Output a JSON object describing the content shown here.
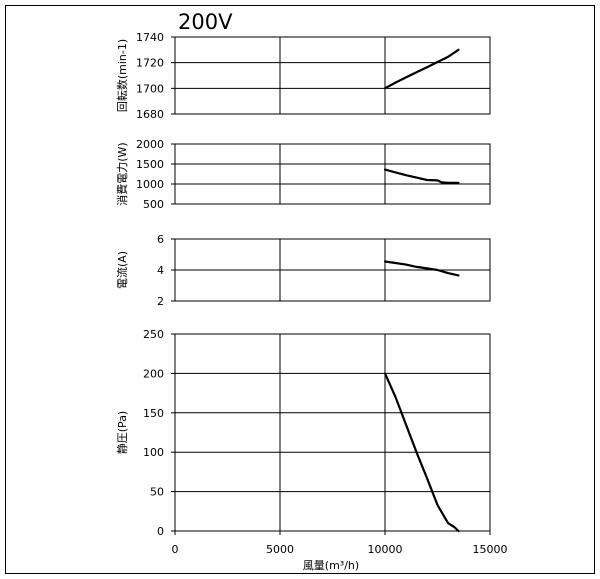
{
  "chart_data": {
    "title": "200V",
    "xlabel": "風量(m³/h)",
    "xlim": [
      0,
      15000
    ],
    "x_ticks": [
      0,
      5000,
      10000,
      15000
    ],
    "panels": [
      {
        "type": "line",
        "ylabel": "回転数(min-1)",
        "ylim": [
          1680,
          1740
        ],
        "y_ticks": [
          1680,
          1700,
          1720,
          1740
        ],
        "grid": true,
        "series": [
          {
            "x": [
              10000,
              10500,
              11000,
              11500,
              12000,
              12500,
              13000,
              13500
            ],
            "values": [
              1700,
              1704.5,
              1708.5,
              1712.5,
              1716.5,
              1720.5,
              1724.5,
              1730
            ]
          }
        ]
      },
      {
        "type": "line",
        "ylabel": "消費電力(W)",
        "ylim": [
          500,
          2000
        ],
        "y_ticks": [
          500,
          1000,
          1500,
          2000
        ],
        "grid": true,
        "series": [
          {
            "x": [
              10000,
              10500,
              11000,
              11500,
              12000,
              12500,
              12700,
              13000,
              13500
            ],
            "values": [
              1360,
              1290,
              1220,
              1160,
              1100,
              1090,
              1040,
              1030,
              1030
            ]
          }
        ]
      },
      {
        "type": "line",
        "ylabel": "電流(A)",
        "ylim": [
          2,
          6
        ],
        "y_ticks": [
          2,
          4,
          6
        ],
        "grid": true,
        "series": [
          {
            "x": [
              10000,
              10500,
              11000,
              11500,
              12000,
              12500,
              13000,
              13500
            ],
            "values": [
              4.55,
              4.45,
              4.35,
              4.2,
              4.1,
              4.0,
              3.8,
              3.65
            ]
          }
        ]
      },
      {
        "type": "line",
        "ylabel": "静圧(Pa)",
        "ylim": [
          0,
          250
        ],
        "y_ticks": [
          0,
          50,
          100,
          150,
          200,
          250
        ],
        "grid": true,
        "series": [
          {
            "x": [
              10000,
              10500,
              11000,
              11500,
              12000,
              12500,
              13000,
              13300,
              13500
            ],
            "values": [
              200,
              170,
              135,
              100,
              67,
              33,
              10,
              5,
              0
            ]
          }
        ]
      }
    ]
  }
}
